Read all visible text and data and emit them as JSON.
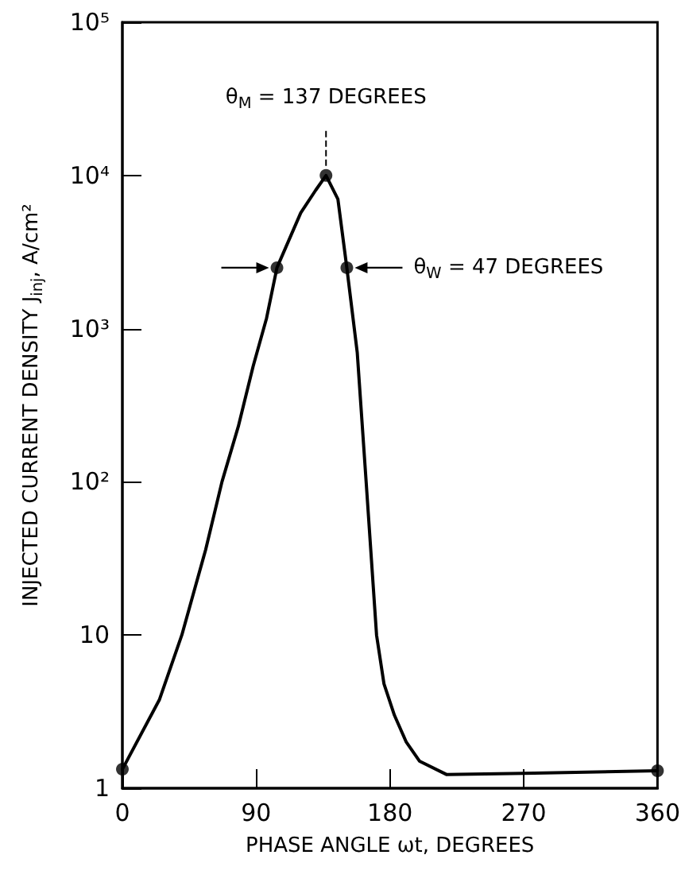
{
  "chart_data": {
    "type": "line",
    "xlabel": "PHASE ANGLE ωt, DEGREES",
    "ylabel": "INJECTED CURRENT DENSITY J$_{inj}$, A/cm²",
    "log": "y",
    "grid": false,
    "xlim": [
      0,
      360
    ],
    "xticks": [
      0,
      90,
      180,
      270,
      360
    ],
    "ylim": [
      1,
      100000
    ],
    "yticks": [
      1,
      10,
      {
        "value": 100,
        "label": "10²"
      },
      {
        "value": 1000,
        "label": "10³"
      },
      {
        "value": 10000,
        "label": "10⁴"
      },
      {
        "value": 100000,
        "label": "10⁵"
      }
    ],
    "series": [
      {
        "type": "line",
        "color": "#000000",
        "marker": "none",
        "line_style": "solid",
        "x": [
          0,
          25,
          40,
          56,
          67,
          78,
          88,
          97,
          104,
          120,
          130,
          137,
          145,
          151,
          158,
          164,
          171,
          176,
          183,
          191,
          200,
          218,
          270,
          360
        ],
        "values": [
          1.33,
          3.8,
          10,
          36,
          100,
          230,
          570,
          1170,
          2500,
          5700,
          8000,
          10000,
          7000,
          2500,
          700,
          100,
          10,
          4.8,
          3,
          2,
          1.5,
          1.23,
          1.25,
          1.3
        ]
      },
      {
        "type": "scatter",
        "color": "#000000",
        "marker": "circle",
        "x": [
          0,
          104,
          137,
          151,
          360
        ],
        "values": [
          1.33,
          2500,
          10000,
          2500,
          1.3
        ]
      }
    ],
    "annotations": [
      {
        "text": "θ$_{M}$ = 137 DEGREES",
        "x": 137,
        "y": 10000
      },
      "θ$_{W}$ = 47 DEGREES"
    ]
  }
}
